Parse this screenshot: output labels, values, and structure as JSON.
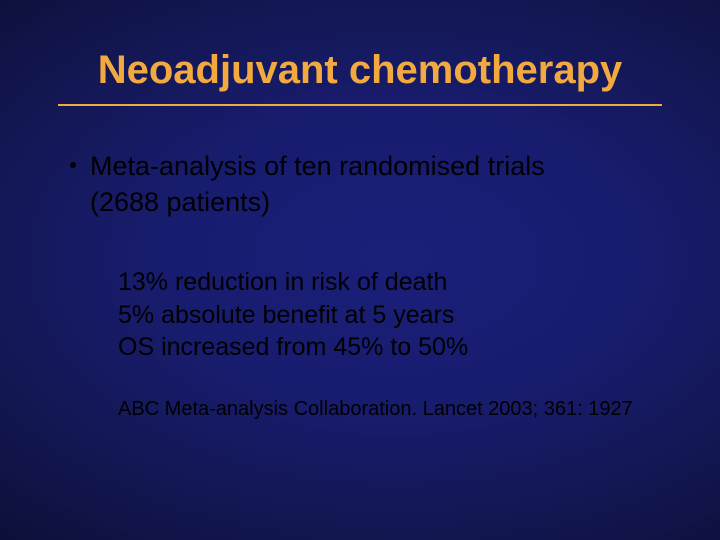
{
  "slide": {
    "title": "Neoadjuvant chemotherapy",
    "title_color": "#f2a940",
    "underline_color": "#f2a940",
    "background_center": "#1a1f7a",
    "background_edge": "#000000",
    "text_color": "#000000",
    "title_fontsize": 40,
    "body_fontsize": 27,
    "sub_fontsize": 25,
    "citation_fontsize": 20,
    "bullet": {
      "line1": "Meta-analysis of ten randomised trials",
      "line2": "(2688 patients)"
    },
    "sub": {
      "line1": "13% reduction in risk of death",
      "line2": "5% absolute benefit at 5 years",
      "line3": "OS increased from 45% to 50%"
    },
    "citation": "ABC Meta-analysis Collaboration. Lancet 2003; 361: 1927"
  }
}
